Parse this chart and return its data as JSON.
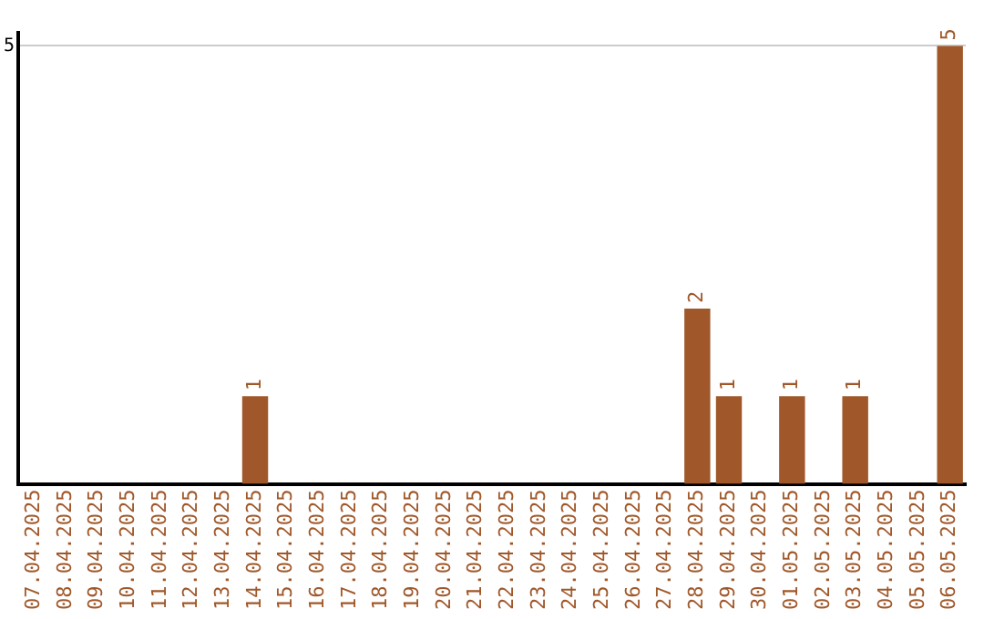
{
  "chart_data": {
    "type": "bar",
    "categories": [
      "07.04.2025",
      "08.04.2025",
      "09.04.2025",
      "10.04.2025",
      "11.04.2025",
      "12.04.2025",
      "13.04.2025",
      "14.04.2025",
      "15.04.2025",
      "16.04.2025",
      "17.04.2025",
      "18.04.2025",
      "19.04.2025",
      "20.04.2025",
      "21.04.2025",
      "22.04.2025",
      "23.04.2025",
      "24.04.2025",
      "25.04.2025",
      "26.04.2025",
      "27.04.2025",
      "28.04.2025",
      "29.04.2025",
      "30.04.2025",
      "01.05.2025",
      "02.05.2025",
      "03.05.2025",
      "04.05.2025",
      "05.05.2025",
      "06.05.2025"
    ],
    "values": [
      0,
      0,
      0,
      0,
      0,
      0,
      0,
      1,
      0,
      0,
      0,
      0,
      0,
      0,
      0,
      0,
      0,
      0,
      0,
      0,
      0,
      2,
      1,
      0,
      1,
      0,
      1,
      0,
      0,
      5
    ],
    "value_labels": [
      null,
      null,
      null,
      null,
      null,
      null,
      null,
      "1",
      null,
      null,
      null,
      null,
      null,
      null,
      null,
      null,
      null,
      null,
      null,
      null,
      null,
      "2",
      "1",
      null,
      "1",
      null,
      "1",
      null,
      null,
      "5"
    ],
    "color": "#a0582a",
    "ylim": [
      0,
      5.15
    ],
    "yticks": [
      5
    ],
    "grid": "y",
    "legend": false
  }
}
